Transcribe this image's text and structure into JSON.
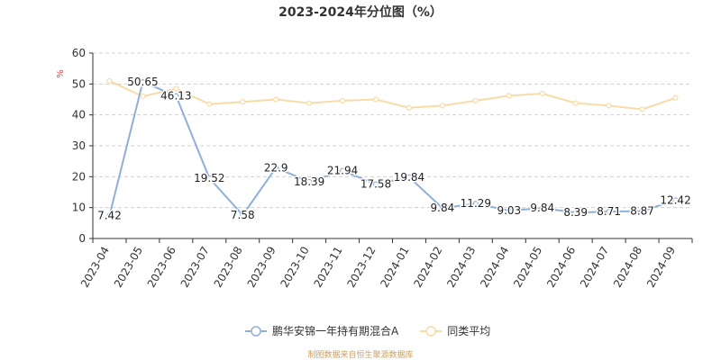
{
  "chart_data": {
    "type": "line",
    "title": "2023-2024年分位图（%）",
    "unit_label": "%",
    "categories": [
      "2023-04",
      "2023-05",
      "2023-06",
      "2023-07",
      "2023-08",
      "2023-09",
      "2023-10",
      "2023-11",
      "2023-12",
      "2024-01",
      "2024-02",
      "2024-03",
      "2024-04",
      "2024-05",
      "2024-06",
      "2024-07",
      "2024-08",
      "2024-09"
    ],
    "ylim": [
      0,
      60
    ],
    "yticks": [
      0,
      10,
      20,
      30,
      40,
      50,
      60
    ],
    "grid": true,
    "legend_position": "bottom",
    "series": [
      {
        "name": "鹏华安锦一年持有期混合A",
        "color": "#8eb0d8",
        "values": [
          7.42,
          50.65,
          46.13,
          19.52,
          7.58,
          22.9,
          18.39,
          21.94,
          17.58,
          19.84,
          9.84,
          11.29,
          9.03,
          9.84,
          8.39,
          8.71,
          8.87,
          12.42
        ],
        "labels": [
          "7.42",
          "50.65",
          "46.13",
          "19.52",
          "7.58",
          "22.9",
          "18.39",
          "21.94",
          "17.58",
          "19.84",
          "9.84",
          "11.29",
          "9.03",
          "9.84",
          "8.39",
          "8.71",
          "8.87",
          "12.42"
        ],
        "show_labels": true
      },
      {
        "name": "同类平均",
        "color": "#f8dca8",
        "values": [
          51.0,
          46.0,
          48.5,
          43.5,
          44.2,
          45.0,
          43.8,
          44.6,
          45.0,
          42.3,
          43.0,
          44.6,
          46.2,
          46.9,
          43.8,
          43.0,
          41.8,
          45.5
        ],
        "show_labels": false
      }
    ]
  },
  "footer": {
    "source": "制图数据来自恒生聚源数据库"
  }
}
